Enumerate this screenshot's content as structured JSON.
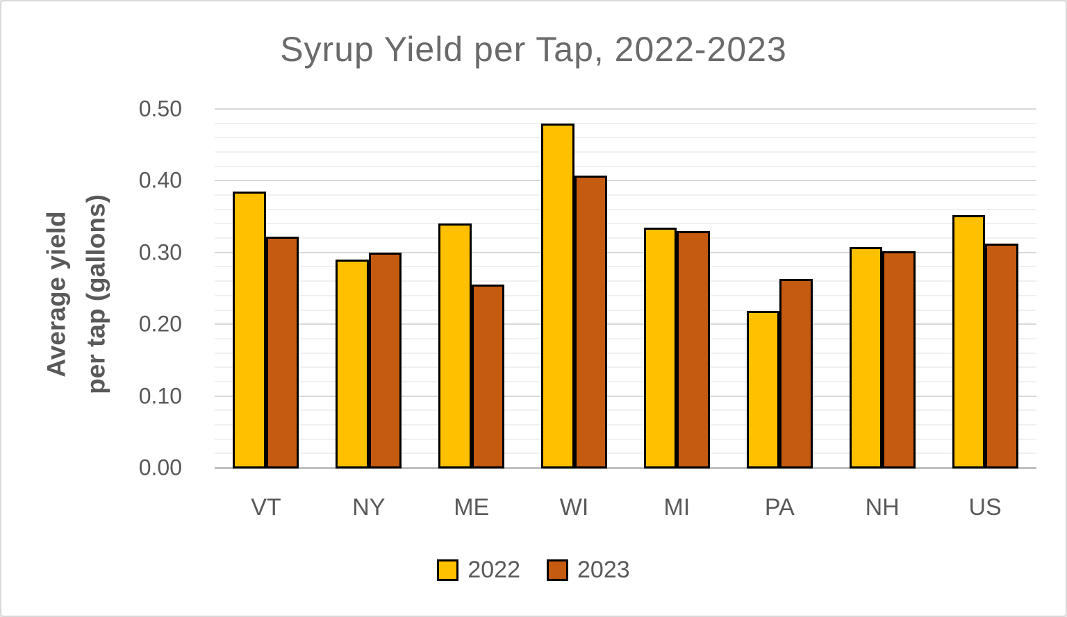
{
  "window": {
    "background": "#ffffff",
    "border_color": "#d9d9d9"
  },
  "chart_data": {
    "type": "bar",
    "title": "Syrup Yield per Tap, 2022-2023",
    "ylabel_lines": [
      "Average yield",
      "per tap (gallons)"
    ],
    "xlabel": "",
    "categories": [
      "VT",
      "NY",
      "ME",
      "WI",
      "MI",
      "PA",
      "NH",
      "US"
    ],
    "series": [
      {
        "name": "2022",
        "color": "#FFC000",
        "values": [
          0.385,
          0.29,
          0.34,
          0.48,
          0.335,
          0.219,
          0.308,
          0.352
        ]
      },
      {
        "name": "2023",
        "color": "#C55A11",
        "values": [
          0.322,
          0.3,
          0.255,
          0.407,
          0.33,
          0.263,
          0.302,
          0.312
        ]
      }
    ],
    "ylim": [
      0.0,
      0.5
    ],
    "ytick_step": 0.1,
    "minor_gridline_step": 0.02,
    "ytick_labels": [
      "0.00",
      "0.10",
      "0.20",
      "0.30",
      "0.40",
      "0.50"
    ],
    "grid": "on",
    "legend_position": "bottom",
    "colors": {
      "bar_border": "#000000",
      "minor_gridline": "#f0f0f0",
      "major_gridline": "#d8d8d8",
      "axis_baseline": "#bfbfbf",
      "title_text": "#6a6a6a",
      "axis_text": "#595959"
    }
  }
}
